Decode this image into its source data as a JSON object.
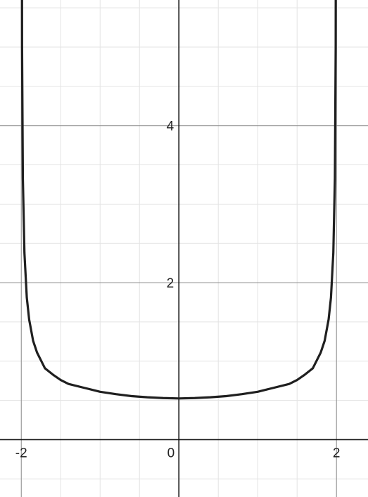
{
  "chart_data": {
    "type": "line",
    "title": "",
    "xlabel": "",
    "ylabel": "",
    "xlim": [
      -2.27,
      2.4
    ],
    "ylim": [
      -0.73,
      5.6
    ],
    "grid": true,
    "minor_grid_step": 0.5,
    "major_grid_step": 2,
    "x_ticks": [
      -2,
      0,
      2
    ],
    "y_ticks": [
      2,
      4
    ],
    "x_tick_labels": [
      "-2",
      "0",
      "2"
    ],
    "y_tick_labels": [
      "2",
      "4"
    ],
    "series": [
      {
        "color": "#1f1f1f",
        "x": [
          -1.995,
          -1.99,
          -1.98,
          -1.96,
          -1.93,
          -1.9,
          -1.85,
          -1.8,
          -1.7,
          -1.6,
          -1.5,
          -1.4,
          -1.2,
          -1.0,
          -0.8,
          -0.6,
          -0.4,
          -0.2,
          0.0,
          0.2,
          0.4,
          0.6,
          0.8,
          1.0,
          1.2,
          1.4,
          1.5,
          1.6,
          1.7,
          1.8,
          1.85,
          1.9,
          1.93,
          1.96,
          1.98,
          1.99,
          1.995
        ],
        "y": [
          10.0,
          5.0,
          3.33,
          2.38,
          1.81,
          1.53,
          1.26,
          1.11,
          0.91,
          0.83,
          0.76,
          0.71,
          0.66,
          0.61,
          0.58,
          0.555,
          0.54,
          0.53,
          0.525,
          0.53,
          0.54,
          0.555,
          0.58,
          0.61,
          0.66,
          0.71,
          0.76,
          0.83,
          0.91,
          1.11,
          1.26,
          1.53,
          1.81,
          2.38,
          3.33,
          5.0,
          10.0
        ]
      }
    ]
  }
}
